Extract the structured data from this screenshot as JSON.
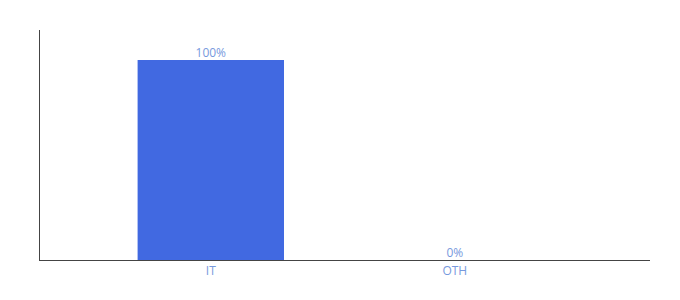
{
  "chart_data": {
    "type": "bar",
    "categories": [
      "IT",
      "OTH"
    ],
    "values": [
      100,
      0
    ],
    "value_labels": [
      "100%",
      "0%"
    ],
    "data_labels": true,
    "color": "#4169e1",
    "ylim": [
      0,
      115
    ],
    "grid": false,
    "tick_labels": "x"
  }
}
